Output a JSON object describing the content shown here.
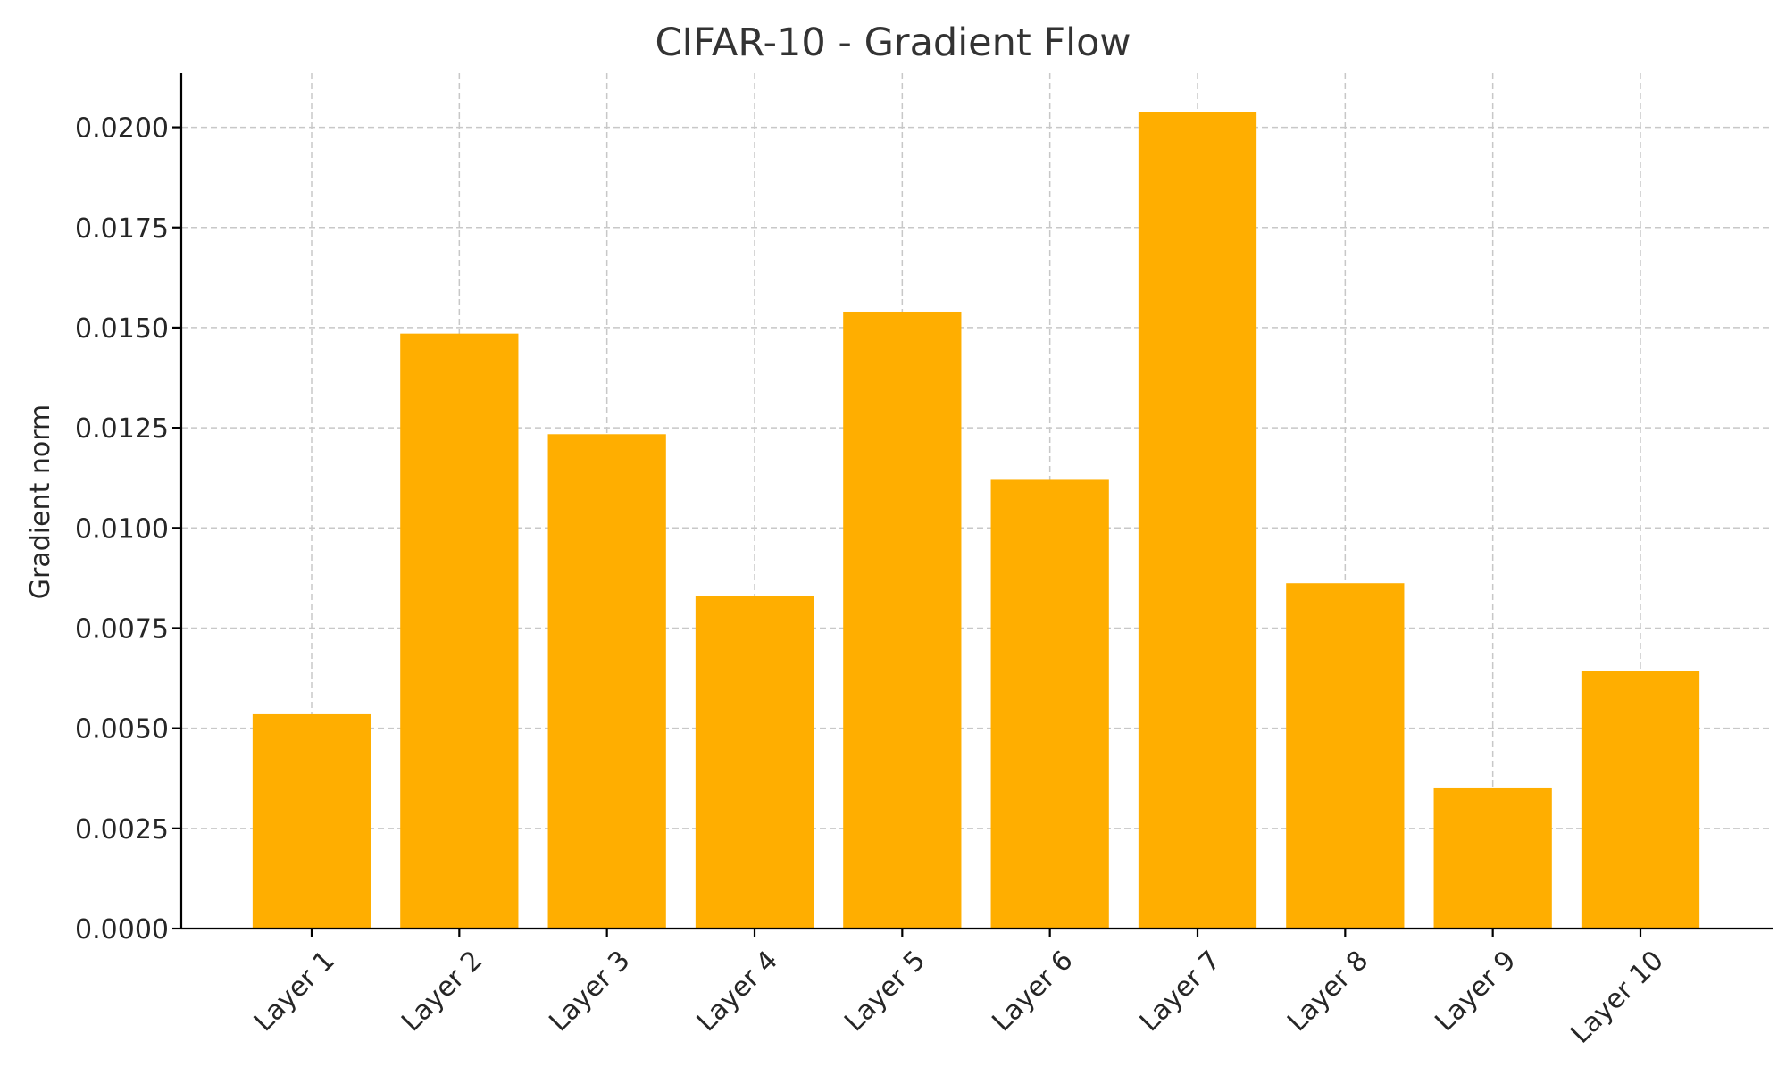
{
  "chart_data": {
    "type": "bar",
    "title": "CIFAR-10 - Gradient Flow",
    "xlabel": "",
    "ylabel": "Gradient norm",
    "categories": [
      "Layer 1",
      "Layer 2",
      "Layer 3",
      "Layer 4",
      "Layer 5",
      "Layer 6",
      "Layer 7",
      "Layer 8",
      "Layer 9",
      "Layer 10"
    ],
    "values": [
      0.00535,
      0.01485,
      0.01234,
      0.0083,
      0.0154,
      0.0112,
      0.02037,
      0.00862,
      0.0035,
      0.00643
    ],
    "ylim": [
      0,
      0.02135
    ],
    "yticks": [
      0.0,
      0.0025,
      0.005,
      0.0075,
      0.01,
      0.0125,
      0.015,
      0.0175,
      0.02
    ],
    "ytick_labels": [
      "0.0000",
      "0.0025",
      "0.0050",
      "0.0075",
      "0.0100",
      "0.0125",
      "0.0150",
      "0.0175",
      "0.0200"
    ],
    "bar_color": "#ffae00",
    "grid": true,
    "legend": "none"
  }
}
